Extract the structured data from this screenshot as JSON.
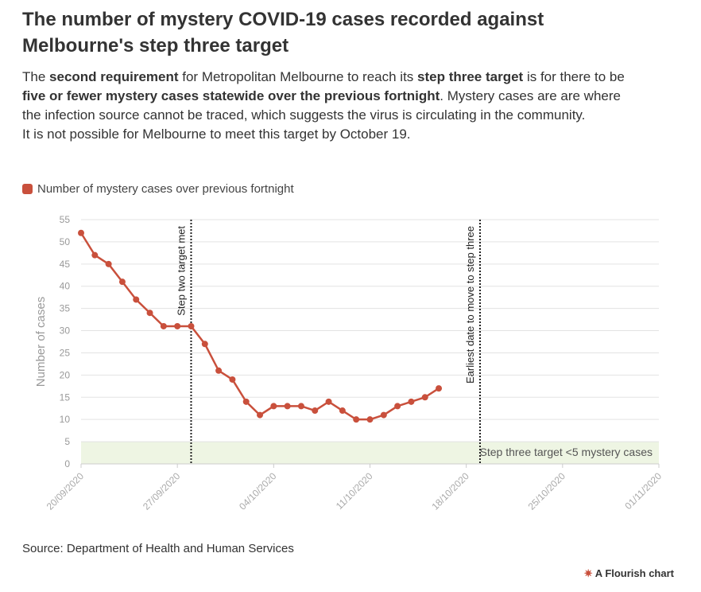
{
  "chart_data": {
    "type": "line",
    "title": "The number of mystery COVID-19 cases recorded against Melbourne's step three target",
    "subtitle": [
      [
        {
          "text": "The "
        },
        {
          "text": "second requirement",
          "bold": true
        },
        {
          "text": " for Metropolitan Melbourne to reach its "
        },
        {
          "text": "step three target",
          "bold": true
        },
        {
          "text": " is for there to be "
        },
        {
          "text": "five or fewer mystery cases statewide over the previous fortnight",
          "bold": true
        },
        {
          "text": ". Mystery cases are are where the infection source cannot be traced, which suggests the virus is circulating in the community."
        }
      ],
      [
        {
          "text": "It is not possible for Melbourne to meet this target by October 19."
        }
      ]
    ],
    "y_label": "Number of cases",
    "x": [
      "20/09/2020",
      "21/09/2020",
      "22/09/2020",
      "23/09/2020",
      "24/09/2020",
      "25/09/2020",
      "26/09/2020",
      "27/09/2020",
      "28/09/2020",
      "29/09/2020",
      "30/09/2020",
      "01/10/2020",
      "02/10/2020",
      "03/10/2020",
      "04/10/2020",
      "05/10/2020",
      "06/10/2020",
      "07/10/2020",
      "08/10/2020",
      "09/10/2020",
      "10/10/2020",
      "11/10/2020",
      "12/10/2020",
      "13/10/2020",
      "14/10/2020",
      "15/10/2020",
      "16/10/2020"
    ],
    "series": [
      {
        "name": "Number of mystery cases over previous fortnight",
        "color": "#c9503c",
        "values": [
          52,
          47,
          45,
          41,
          37,
          34,
          31,
          31,
          31,
          27,
          21,
          19,
          14,
          11,
          13,
          13,
          13,
          12,
          14,
          12,
          10,
          10,
          11,
          13,
          14,
          15,
          17
        ]
      }
    ],
    "xlim": [
      "20/09/2020",
      "01/11/2020"
    ],
    "xticks": [
      "20/09/2020",
      "27/09/2020",
      "04/10/2020",
      "11/10/2020",
      "18/10/2020",
      "25/10/2020",
      "01/11/2020"
    ],
    "ylim": [
      0,
      55
    ],
    "yticks": [
      0,
      5,
      10,
      15,
      20,
      25,
      30,
      35,
      40,
      45,
      50,
      55
    ],
    "grid": true,
    "vlines": [
      {
        "x": "28/09/2020",
        "label": "Step two target met"
      },
      {
        "x": "19/10/2020",
        "label": "Earliest date to move to step three"
      }
    ],
    "band": {
      "from": 0,
      "to": 5,
      "label": "Step three target <5 mystery cases",
      "color": "#eef5e3"
    },
    "source": "Source: Department of Health and Human Services",
    "credit": "A Flourish chart"
  }
}
